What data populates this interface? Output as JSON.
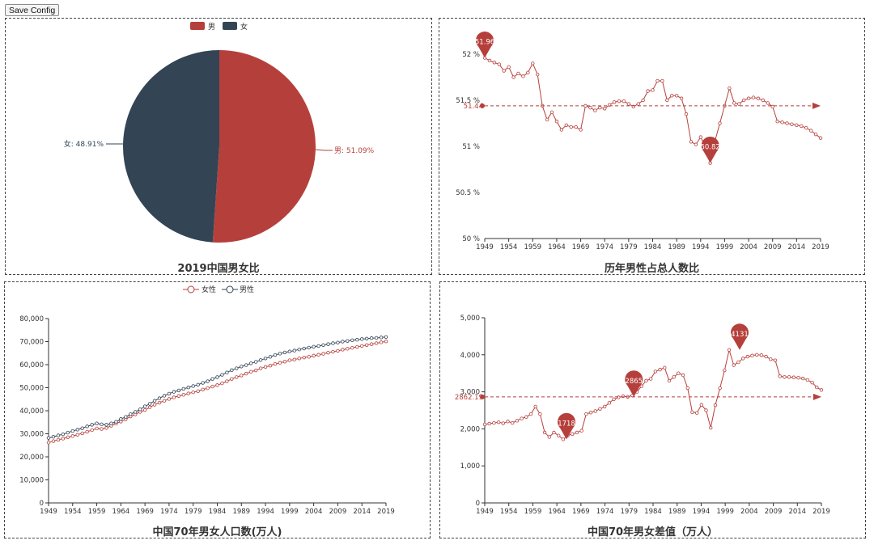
{
  "toolbar": {
    "save_label": "Save Config"
  },
  "colors": {
    "red": "#b5403b",
    "navy": "#334455"
  },
  "chart_data": [
    {
      "type": "pie",
      "title": "2019中国男女比",
      "legend": [
        "男",
        "女"
      ],
      "legend_position": "top-center",
      "slices": [
        {
          "name": "男",
          "value": 51.09,
          "label": "男: 51.09%",
          "color": "#b5403b"
        },
        {
          "name": "女",
          "value": 48.91,
          "label": "女: 48.91%",
          "color": "#334455"
        }
      ]
    },
    {
      "type": "line",
      "title": "历年男性占总人数比",
      "x_ticks": [
        "1949",
        "1954",
        "1959",
        "1964",
        "1969",
        "1974",
        "1979",
        "1984",
        "1989",
        "1994",
        "1999",
        "2004",
        "2009",
        "2014",
        "2019"
      ],
      "y_ticks": [
        "50 %",
        "50.5 %",
        "51 %",
        "51.5 %",
        "52 %"
      ],
      "ylim": [
        50,
        52.2
      ],
      "x_start": 1949,
      "values": [
        51.96,
        51.93,
        51.91,
        51.89,
        51.82,
        51.86,
        51.75,
        51.79,
        51.76,
        51.8,
        51.9,
        51.78,
        51.44,
        51.29,
        51.37,
        51.27,
        51.18,
        51.23,
        51.21,
        51.21,
        51.18,
        51.44,
        51.42,
        51.39,
        51.42,
        51.41,
        51.45,
        51.48,
        51.49,
        51.49,
        51.46,
        51.43,
        51.46,
        51.5,
        51.6,
        51.61,
        51.71,
        51.71,
        51.5,
        51.55,
        51.55,
        51.52,
        51.35,
        51.05,
        51.02,
        51.1,
        51.0,
        50.82,
        51.06,
        51.25,
        51.44,
        51.63,
        51.47,
        51.46,
        51.5,
        51.52,
        51.53,
        51.52,
        51.5,
        51.47,
        51.43,
        51.27,
        51.26,
        51.25,
        51.24,
        51.23,
        51.22,
        51.2,
        51.17,
        51.13,
        51.09
      ],
      "max_marker": {
        "label": "51.96",
        "x": 1949,
        "y": 51.96
      },
      "min_marker": {
        "label": "50.82",
        "x": 1996,
        "y": 50.82
      },
      "avg_line": {
        "label": "51.44",
        "value": 51.44
      }
    },
    {
      "type": "line",
      "title": "中国70年男女人口数(万人)",
      "legend_position": "top-center",
      "x_ticks": [
        "1949",
        "1954",
        "1959",
        "1964",
        "1969",
        "1974",
        "1979",
        "1984",
        "1989",
        "1994",
        "1999",
        "2004",
        "2009",
        "2014",
        "2019"
      ],
      "y_ticks": [
        "0",
        "10,000",
        "20,000",
        "30,000",
        "40,000",
        "50,000",
        "60,000",
        "70,000",
        "80,000"
      ],
      "ylim": [
        0,
        80000
      ],
      "x_start": 1949,
      "series": [
        {
          "name": "女性",
          "color": "#b5403b",
          "values": [
            26200,
            26800,
            27400,
            27900,
            28500,
            29000,
            29600,
            30200,
            30900,
            31600,
            32300,
            32100,
            32500,
            33500,
            34400,
            35300,
            36300,
            37500,
            38400,
            39500,
            40300,
            41500,
            42600,
            43500,
            44300,
            45100,
            45800,
            46400,
            46900,
            47500,
            48000,
            48500,
            49200,
            49800,
            50500,
            51100,
            51900,
            52800,
            53800,
            54600,
            55300,
            56100,
            56900,
            57500,
            58400,
            59000,
            59600,
            60300,
            60800,
            61300,
            61900,
            62200,
            62700,
            63100,
            63400,
            63900,
            64300,
            64700,
            65200,
            65600,
            66000,
            66500,
            66900,
            67300,
            67700,
            68100,
            68500,
            68900,
            69300,
            69700,
            70100
          ]
        },
        {
          "name": "男性",
          "color": "#334455",
          "values": [
            28200,
            28700,
            29300,
            29800,
            30500,
            31200,
            31800,
            32400,
            33200,
            33900,
            34500,
            34100,
            33900,
            34500,
            35200,
            36400,
            37300,
            38500,
            39500,
            40600,
            41900,
            43000,
            44300,
            45400,
            46500,
            47400,
            48200,
            48800,
            49500,
            50100,
            50700,
            51300,
            52100,
            52800,
            53800,
            54600,
            55600,
            56600,
            57600,
            58400,
            59200,
            59800,
            60600,
            61200,
            62000,
            62700,
            63400,
            64200,
            64800,
            65300,
            65700,
            66100,
            66600,
            67000,
            67400,
            67800,
            68100,
            68500,
            68900,
            69300,
            69600,
            70000,
            70300,
            70600,
            70800,
            71100,
            71300,
            71500,
            71600,
            71800,
            72000
          ]
        }
      ]
    },
    {
      "type": "line",
      "title": "中国70年男女差值（万人）",
      "x_ticks": [
        "1949",
        "1954",
        "1959",
        "1964",
        "1969",
        "1974",
        "1979",
        "1984",
        "1989",
        "1994",
        "1999",
        "2004",
        "2009",
        "2014",
        "2019"
      ],
      "y_ticks": [
        "0",
        "1,000",
        "2,000",
        "3,000",
        "4,000",
        "5,000"
      ],
      "ylim": [
        0,
        5000
      ],
      "x_start": 1949,
      "values": [
        2120,
        2140,
        2160,
        2180,
        2150,
        2200,
        2160,
        2220,
        2280,
        2320,
        2400,
        2600,
        2400,
        1900,
        1780,
        1900,
        1820,
        1718,
        1820,
        1860,
        1900,
        1950,
        2400,
        2440,
        2480,
        2540,
        2600,
        2700,
        2800,
        2850,
        2880,
        2865,
        2900,
        3000,
        3150,
        3300,
        3350,
        3550,
        3600,
        3650,
        3300,
        3400,
        3500,
        3450,
        3100,
        2450,
        2430,
        2650,
        2500,
        2030,
        2640,
        3100,
        3580,
        4131,
        3720,
        3800,
        3900,
        3950,
        3980,
        4000,
        3990,
        3950,
        3880,
        3850,
        3420,
        3400,
        3400,
        3390,
        3380,
        3360,
        3320,
        3250,
        3120,
        3050
      ],
      "max_marker": {
        "label": "4131",
        "x": 2002,
        "y": 4131
      },
      "min_marker": {
        "label": "1718",
        "x": 1966,
        "y": 1718
      },
      "extra_marker": {
        "label": "2865",
        "x": 1980,
        "y": 2865
      },
      "avg_line": {
        "label": "2862.19",
        "value": 2862.19
      }
    }
  ]
}
